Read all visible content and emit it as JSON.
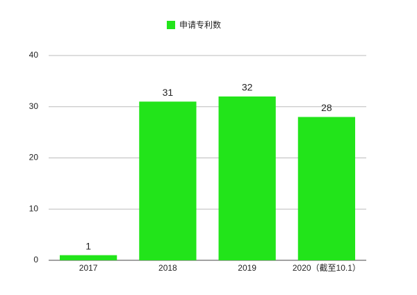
{
  "chart_data": {
    "type": "bar",
    "legend": "top",
    "categories": [
      "2017",
      "2018",
      "2019",
      "2020（截至10.1）"
    ],
    "series": [
      {
        "name": "申请专利数",
        "color": "#22e41a",
        "values": [
          1,
          31,
          32,
          28
        ]
      }
    ],
    "ylim": [
      0,
      40
    ],
    "yticks": [
      0,
      10,
      20,
      30,
      40
    ],
    "grid": true
  }
}
